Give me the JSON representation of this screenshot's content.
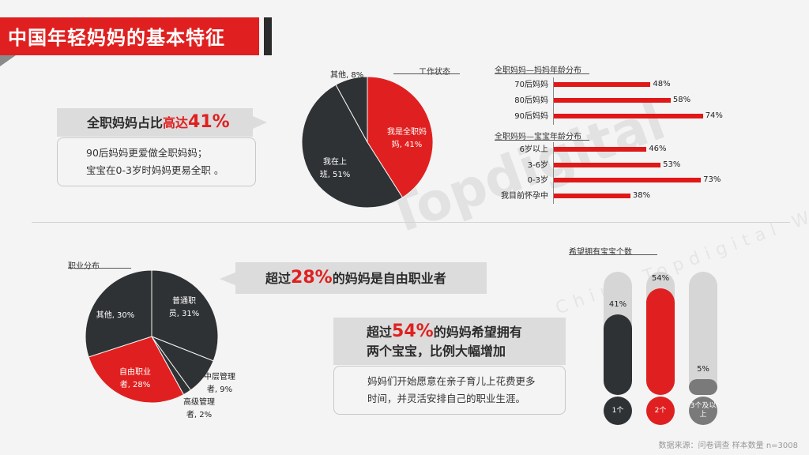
{
  "title": "中国年轻妈妈的基本特征",
  "callout1": {
    "pre": "全职妈妈占比",
    "red": "高达",
    "num": "41%"
  },
  "desc1": [
    "90后妈妈更爱做全职妈妈；",
    "宝宝在0-3岁时妈妈更易全职 。"
  ],
  "callout2": {
    "pre": "超过",
    "num": "28%",
    "post": "的妈妈是自由职业者"
  },
  "callout3": {
    "line1_pre": "超过",
    "line1_num": "54%",
    "line1_post": "的妈妈希望拥有",
    "line2": "两个宝宝，比例大幅增加"
  },
  "desc3": [
    "妈妈们开始愿意在亲子育儿上花费更多",
    "时间，并灵活安排自己的职业生涯。"
  ],
  "source": "数据来源：问卷调查 样本数量 n=3008",
  "watermark": "Topdigital",
  "colors": {
    "red": "#e02020",
    "dark": "#2f3235",
    "grey": "#d6d6d6"
  },
  "chart_data": [
    {
      "type": "pie",
      "title": "工作状态",
      "slices": [
        {
          "label": "我是全职妈妈",
          "value": 41,
          "text": "我是全职妈妈, 41%",
          "color": "#e02020"
        },
        {
          "label": "我在上班",
          "value": 51,
          "text": "我在上班, 51%",
          "color": "#2f3235"
        },
        {
          "label": "其他",
          "value": 8,
          "text": "其他, 8%",
          "color": "#2f3235"
        }
      ]
    },
    {
      "type": "bar",
      "title": "全职妈妈—妈妈年龄分布",
      "categories": [
        "70后妈妈",
        "80后妈妈",
        "90后妈妈"
      ],
      "values": [
        48,
        58,
        74
      ],
      "labels": [
        "48%",
        "58%",
        "74%"
      ],
      "xlim": [
        0,
        100
      ]
    },
    {
      "type": "bar",
      "title": "全职妈妈—宝宝年龄分布",
      "categories": [
        "6岁以上",
        "3-6岁",
        "0-3岁",
        "我目前怀孕中"
      ],
      "values": [
        46,
        53,
        73,
        38
      ],
      "labels": [
        "46%",
        "53%",
        "73%",
        "38%"
      ],
      "xlim": [
        0,
        100
      ]
    },
    {
      "type": "pie",
      "title": "职业分布",
      "slices": [
        {
          "label": "普通职员",
          "value": 31,
          "text": "普通职员, 31%",
          "color": "#2f3235"
        },
        {
          "label": "中层管理者",
          "value": 9,
          "text": "中层管理者, 9%",
          "color": "#2f3235"
        },
        {
          "label": "高级管理者",
          "value": 2,
          "text": "高级管理者, 2%",
          "color": "#2f3235"
        },
        {
          "label": "自由职业者",
          "value": 28,
          "text": "自由职业者, 28%",
          "color": "#e02020"
        },
        {
          "label": "其他",
          "value": 30,
          "text": "其他, 30%",
          "color": "#2f3235"
        }
      ]
    },
    {
      "type": "bar",
      "title": "希望拥有宝宝个数",
      "categories": [
        "1个",
        "2个",
        "3个及以上"
      ],
      "values": [
        41,
        54,
        5
      ],
      "labels": [
        "41%",
        "54%",
        "5%"
      ],
      "colors": [
        "#2f3235",
        "#e02020",
        "#7a7a7a"
      ],
      "ylim": [
        0,
        100
      ]
    }
  ]
}
